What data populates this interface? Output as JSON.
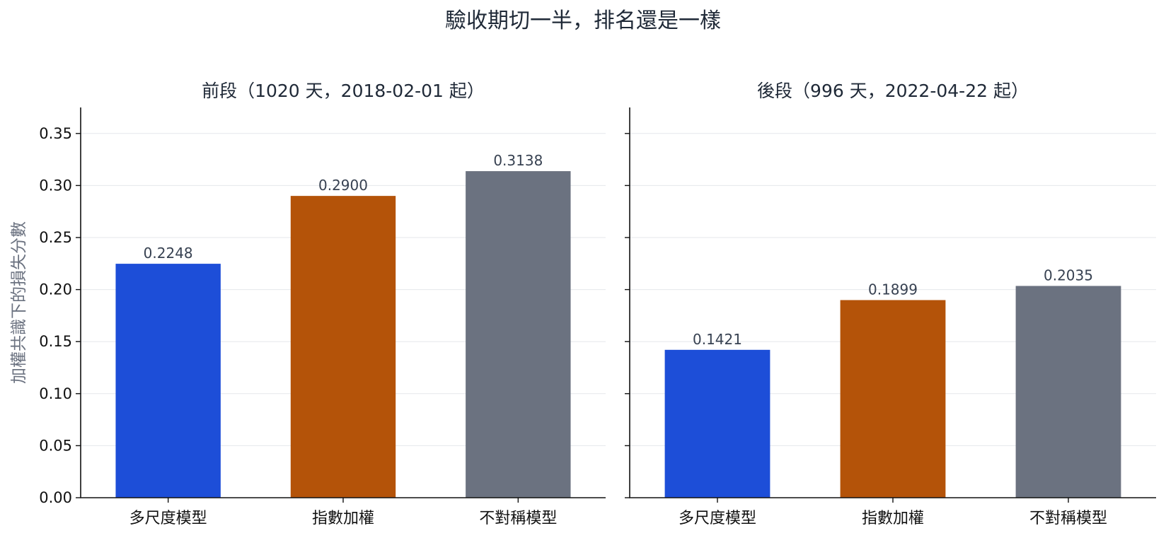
{
  "figure": {
    "title": "驗收期切一半，排名還是一樣"
  },
  "chart_data": [
    {
      "type": "bar",
      "title": "前段（1020 天，2018-02-01 起）",
      "categories": [
        "多尺度模型",
        "指數加權",
        "不對稱模型"
      ],
      "values": [
        0.2248,
        0.29,
        0.3138
      ],
      "value_labels": [
        "0.2248",
        "0.2900",
        "0.3138"
      ],
      "colors": [
        "#1d4ed8",
        "#b45309",
        "#6b7280"
      ],
      "ylabel": "加權共識下的損失分數",
      "ylim": [
        0,
        0.375
      ],
      "yticks": [
        0,
        0.05,
        0.1,
        0.15,
        0.2,
        0.25,
        0.3,
        0.35
      ],
      "ytick_labels": [
        "0.00",
        "0.05",
        "0.10",
        "0.15",
        "0.20",
        "0.25",
        "0.30",
        "0.35"
      ],
      "grid": "y"
    },
    {
      "type": "bar",
      "title": "後段（996 天，2022-04-22 起）",
      "categories": [
        "多尺度模型",
        "指數加權",
        "不對稱模型"
      ],
      "values": [
        0.1421,
        0.1899,
        0.2035
      ],
      "value_labels": [
        "0.1421",
        "0.1899",
        "0.2035"
      ],
      "colors": [
        "#1d4ed8",
        "#b45309",
        "#6b7280"
      ],
      "ylim": [
        0,
        0.375
      ],
      "yticks": [
        0,
        0.05,
        0.1,
        0.15,
        0.2,
        0.25,
        0.3,
        0.35
      ],
      "sharey": true,
      "grid": "y"
    }
  ]
}
